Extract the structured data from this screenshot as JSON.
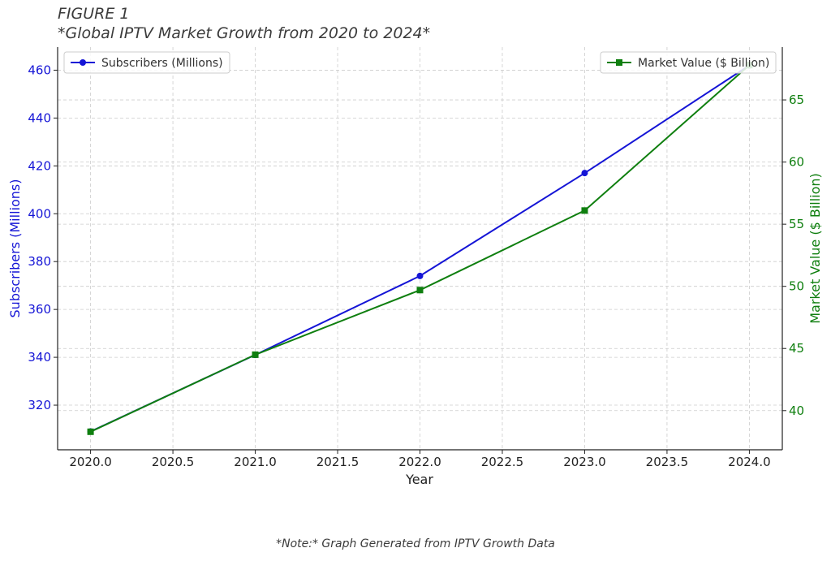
{
  "figure": {
    "label": "FIGURE 1",
    "title": "*Global IPTV Market Growth from 2020 to 2024*",
    "note": "*Note:* Graph Generated from IPTV Growth Data"
  },
  "colors": {
    "subscribers": "#1515d6",
    "market_value": "#0f7f0f",
    "grid": "#cccccc",
    "axis": "#222222"
  },
  "chart_data": {
    "type": "line",
    "xlabel": "Year",
    "x_ticks": [
      "2020.0",
      "2020.5",
      "2021.0",
      "2021.5",
      "2022.0",
      "2022.5",
      "2023.0",
      "2023.5",
      "2024.0"
    ],
    "x_tick_values": [
      2020.0,
      2020.5,
      2021.0,
      2021.5,
      2022.0,
      2022.5,
      2023.0,
      2023.5,
      2024.0
    ],
    "xlim": [
      2019.8,
      2024.2
    ],
    "grid": true,
    "series": [
      {
        "name": "Subscribers (Millions)",
        "axis": "left",
        "marker": "circle",
        "x": [
          2020,
          2021,
          2022,
          2023,
          2024
        ],
        "values": [
          309,
          341,
          374,
          417,
          462
        ]
      },
      {
        "name": "Market Value ($ Billion)",
        "axis": "right",
        "marker": "square",
        "x": [
          2020,
          2021,
          2022,
          2023,
          2024
        ],
        "values": [
          38.3,
          44.5,
          49.7,
          56.1,
          67.8
        ]
      }
    ],
    "y_left": {
      "label": "Subscribers (Millions)",
      "ticks": [
        "320",
        "340",
        "360",
        "380",
        "400",
        "420",
        "440",
        "460"
      ],
      "tick_values": [
        320,
        340,
        360,
        380,
        400,
        420,
        440,
        460
      ],
      "ylim": [
        301.35,
        469.65
      ]
    },
    "y_right": {
      "label": "Market Value ($ Billion)",
      "ticks": [
        "40",
        "45",
        "50",
        "55",
        "60",
        "65"
      ],
      "tick_values": [
        40,
        45,
        50,
        55,
        60,
        65
      ],
      "ylim": [
        36.85,
        69.25
      ]
    },
    "legends": [
      {
        "series": 0,
        "placement": "top-left"
      },
      {
        "series": 1,
        "placement": "top-right"
      }
    ]
  }
}
